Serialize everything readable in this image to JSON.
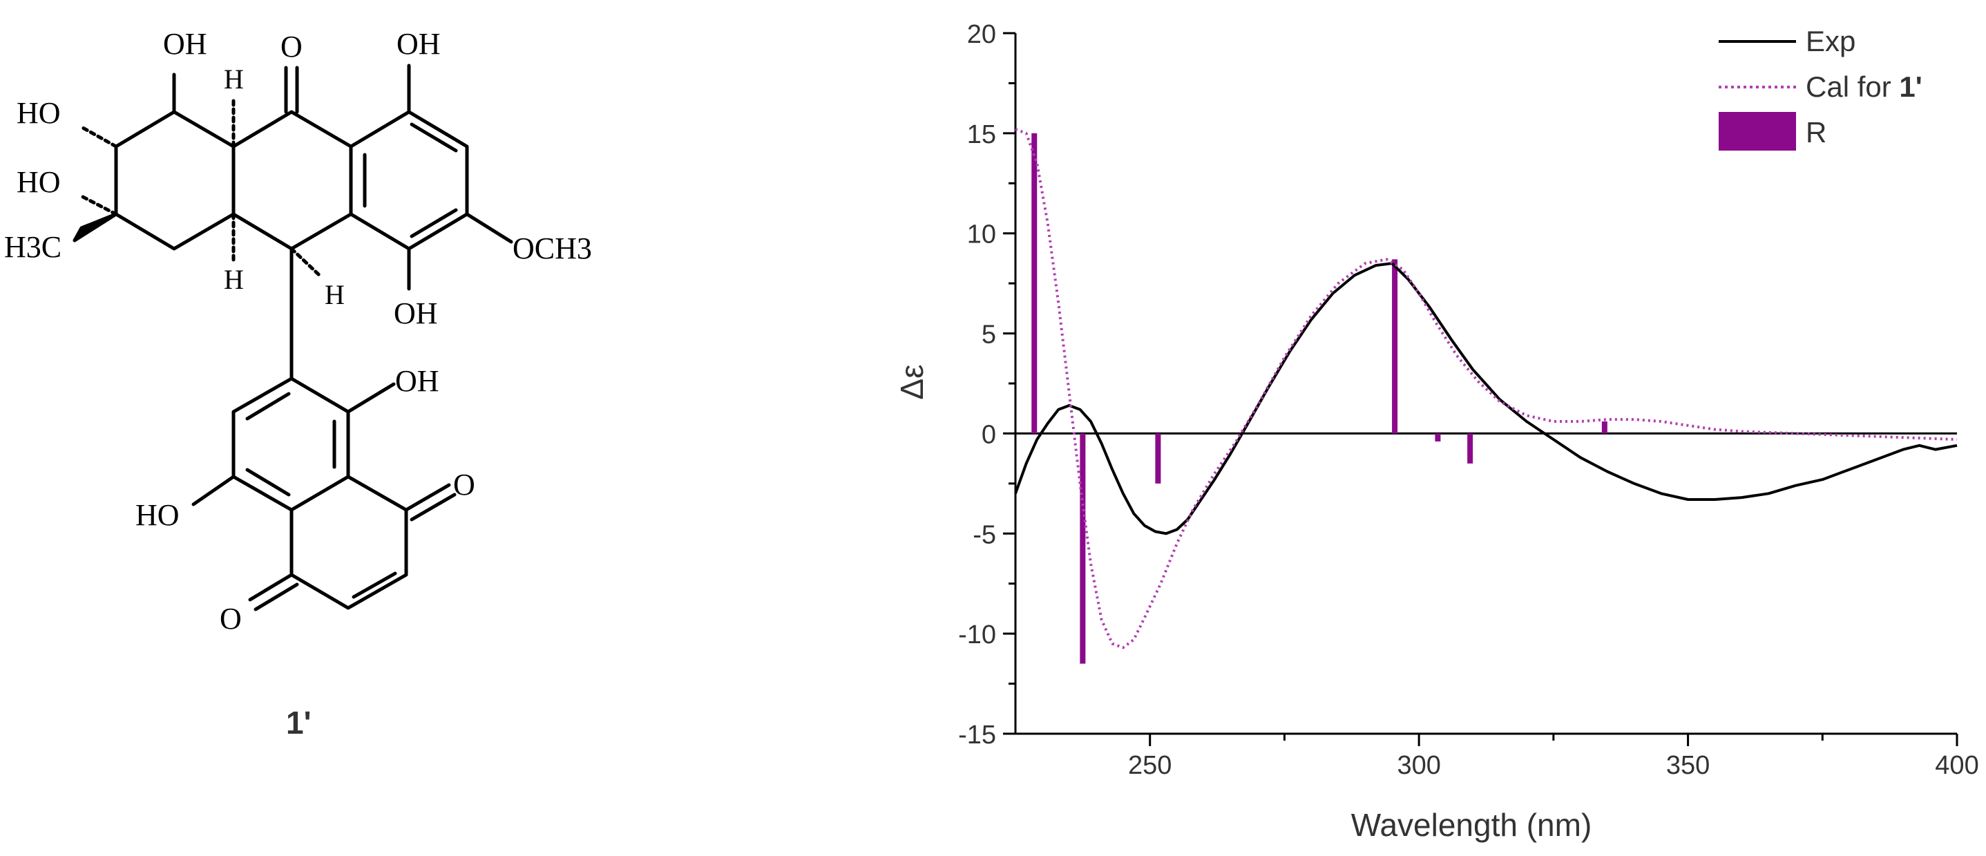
{
  "compound": {
    "label": "1'",
    "atom_labels": {
      "oh": "OH",
      "ho": "HO",
      "o": "O",
      "h": "H",
      "h3c": "H3C",
      "och3": "OCH3"
    }
  },
  "chart_data": {
    "type": "line",
    "xlabel": "Wavelength (nm)",
    "ylabel": "Δε",
    "xlim": [
      225,
      400
    ],
    "ylim": [
      -15,
      20
    ],
    "x_ticks": [
      250,
      300,
      350,
      400
    ],
    "y_ticks": [
      -15,
      -10,
      -5,
      0,
      5,
      10,
      15,
      20
    ],
    "legend": {
      "placement": "top-right",
      "entries": [
        {
          "label": "Exp",
          "style": "solid",
          "color": "#000000"
        },
        {
          "label_prefix": "Cal for ",
          "label_bold": "1'",
          "style": "dotted",
          "color": "#b040b0"
        },
        {
          "label": "R",
          "style": "bar",
          "color": "#8b0a8b"
        }
      ]
    },
    "series": [
      {
        "name": "Exp",
        "color": "#000000",
        "x": [
          225,
          227,
          229,
          231,
          233,
          235,
          237,
          239,
          241,
          243,
          245,
          247,
          249,
          251,
          253,
          255,
          257,
          259,
          262,
          265,
          268,
          272,
          276,
          280,
          284,
          288,
          292,
          295,
          298,
          302,
          306,
          310,
          315,
          320,
          325,
          330,
          335,
          340,
          345,
          350,
          355,
          360,
          365,
          370,
          375,
          380,
          385,
          390,
          393,
          396,
          400
        ],
        "y": [
          -3,
          -1.5,
          -0.3,
          0.5,
          1.2,
          1.4,
          1.2,
          0.6,
          -0.5,
          -1.8,
          -3.0,
          -4.0,
          -4.6,
          -4.9,
          -5.0,
          -4.8,
          -4.3,
          -3.5,
          -2.3,
          -1.0,
          0.4,
          2.3,
          4.1,
          5.7,
          7.0,
          7.9,
          8.4,
          8.5,
          7.7,
          6.3,
          4.7,
          3.2,
          1.7,
          0.6,
          -0.3,
          -1.2,
          -1.9,
          -2.5,
          -3.0,
          -3.3,
          -3.3,
          -3.2,
          -3.0,
          -2.6,
          -2.3,
          -1.8,
          -1.3,
          -0.8,
          -0.6,
          -0.8,
          -0.6
        ]
      },
      {
        "name": "Cal for 1'",
        "color": "#b040b0",
        "x": [
          225,
          227,
          229,
          231,
          233,
          235,
          237,
          239,
          241,
          243,
          245,
          247,
          249,
          252,
          255,
          258,
          262,
          266,
          270,
          275,
          280,
          285,
          290,
          294,
          297,
          300,
          303,
          307,
          311,
          315,
          320,
          325,
          330,
          335,
          340,
          345,
          350,
          355,
          360,
          370,
          380,
          390,
          400
        ],
        "y": [
          15.2,
          15.0,
          13.5,
          10.5,
          6.5,
          2.0,
          -2.5,
          -6.5,
          -9.3,
          -10.5,
          -10.7,
          -10.3,
          -9.2,
          -7.5,
          -5.5,
          -3.8,
          -2.0,
          -0.4,
          1.4,
          3.8,
          5.9,
          7.5,
          8.5,
          8.7,
          8.2,
          7.0,
          5.6,
          3.9,
          2.6,
          1.6,
          0.9,
          0.6,
          0.6,
          0.7,
          0.7,
          0.6,
          0.4,
          0.2,
          0.1,
          0.0,
          -0.1,
          -0.2,
          -0.3
        ]
      }
    ],
    "bars": {
      "name": "R",
      "color": "#8b0a8b",
      "x": [
        228.5,
        237.5,
        251.5,
        295.5,
        303.5,
        309.5,
        334.5
      ],
      "values": [
        15.0,
        -11.5,
        -2.5,
        8.7,
        -0.4,
        -1.5,
        0.6
      ]
    }
  }
}
